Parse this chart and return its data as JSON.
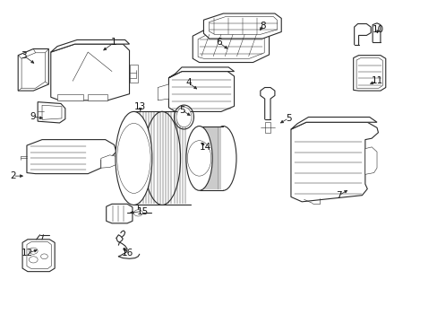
{
  "background_color": "#ffffff",
  "fig_width": 4.89,
  "fig_height": 3.6,
  "dpi": 100,
  "line_color": "#2a2a2a",
  "label_fontsize": 7.5,
  "label_positions": {
    "1": [
      0.26,
      0.87,
      0.23,
      0.84
    ],
    "2": [
      0.028,
      0.455,
      0.058,
      0.455
    ],
    "3": [
      0.052,
      0.83,
      0.082,
      0.8
    ],
    "4": [
      0.43,
      0.745,
      0.455,
      0.72
    ],
    "5a": [
      0.415,
      0.66,
      0.44,
      0.638
    ],
    "5b": [
      0.66,
      0.635,
      0.635,
      0.615
    ],
    "6": [
      0.5,
      0.87,
      0.525,
      0.845
    ],
    "7": [
      0.775,
      0.395,
      0.8,
      0.415
    ],
    "8": [
      0.6,
      0.92,
      0.59,
      0.9
    ],
    "9": [
      0.073,
      0.64,
      0.103,
      0.633
    ],
    "10": [
      0.865,
      0.91,
      0.86,
      0.89
    ],
    "11": [
      0.862,
      0.75,
      0.84,
      0.738
    ],
    "12": [
      0.062,
      0.215,
      0.09,
      0.228
    ],
    "13": [
      0.32,
      0.67,
      0.32,
      0.648
    ],
    "14": [
      0.47,
      0.545,
      0.455,
      0.565
    ],
    "15": [
      0.325,
      0.345,
      0.29,
      0.34
    ],
    "16": [
      0.29,
      0.215,
      0.278,
      0.24
    ]
  }
}
